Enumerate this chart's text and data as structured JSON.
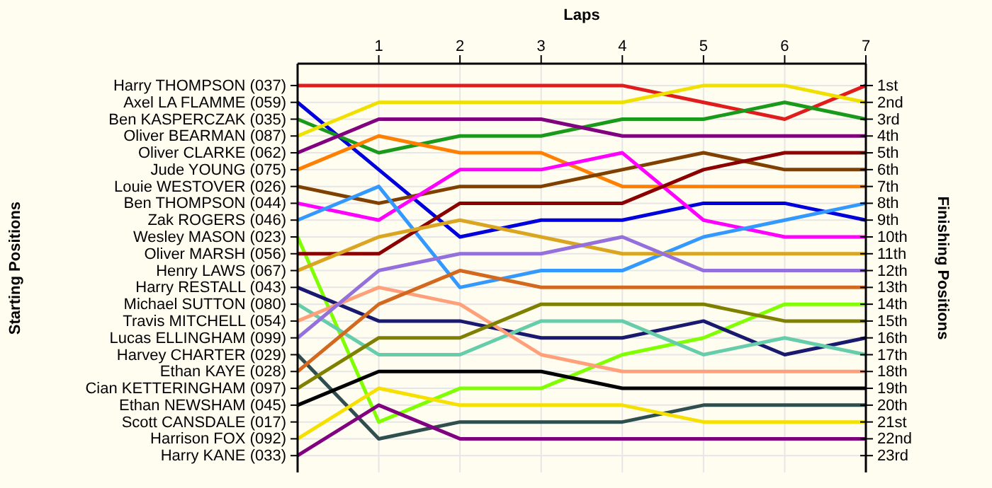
{
  "chart_data": {
    "type": "line",
    "xlabel": "Laps",
    "y2label": "Finishing Positions",
    "x": [
      0,
      1,
      2,
      3,
      4,
      5,
      6,
      7
    ],
    "xlim": [
      0,
      7
    ],
    "xticks": [
      1,
      2,
      3,
      4,
      5,
      6,
      7
    ],
    "y2lim": [
      24,
      -0.3
    ],
    "y2ticks": [
      {
        "value": 1,
        "label": "1st"
      },
      {
        "value": 2,
        "label": "2nd"
      },
      {
        "value": 3,
        "label": "3rd"
      },
      {
        "value": 4,
        "label": "4th"
      },
      {
        "value": 5,
        "label": "5th"
      },
      {
        "value": 6,
        "label": "6th"
      },
      {
        "value": 7,
        "label": "7th"
      },
      {
        "value": 8,
        "label": "8th"
      },
      {
        "value": 9,
        "label": "9th"
      },
      {
        "value": 10,
        "label": "10th"
      },
      {
        "value": 11,
        "label": "11th"
      },
      {
        "value": 12,
        "label": "12th"
      },
      {
        "value": 13,
        "label": "13th"
      },
      {
        "value": 14,
        "label": "14th"
      },
      {
        "value": 15,
        "label": "15th"
      },
      {
        "value": 16,
        "label": "16th"
      },
      {
        "value": 17,
        "label": "17th"
      },
      {
        "value": 18,
        "label": "18th"
      },
      {
        "value": 19,
        "label": "19th"
      },
      {
        "value": 20,
        "label": "20th"
      },
      {
        "value": 21,
        "label": "21st"
      },
      {
        "value": 22,
        "label": "22nd"
      },
      {
        "value": 23,
        "label": "23rd"
      }
    ],
    "grid": true,
    "marker": "none",
    "line_style": "solid",
    "annotations": [
      "Harry THOMPSON (037)",
      "Axel LA FLAMME (059)",
      "Ben KASPERCZAK (035)",
      "Oliver BEARMAN (087)",
      "Oliver CLARKE (062)",
      "Jude YOUNG (075)",
      "Louie WESTOVER (026)",
      "Ben THOMPSON (044)",
      "Zak ROGERS (046)",
      "Wesley MASON (023)",
      "Oliver MARSH (056)",
      "Henry LAWS (067)",
      "Harry RESTALL (043)",
      "Michael SUTTON (080)",
      "Travis MITCHELL (054)",
      "Lucas ELLINGHAM (099)",
      "Harvey CHARTER (029)",
      "Ethan KAYE (028)",
      "Cian KETTERINGHAM (097)",
      "Ethan NEWSHAM (045)",
      "Scott CANSDALE (017)",
      "Harrison FOX (092)",
      "Harry KANE (033)",
      "Starting Positions"
    ],
    "series": [
      {
        "color": "#e01c1c",
        "values": [
          1,
          1,
          1,
          1,
          1,
          2,
          3,
          1
        ],
        "axis": "y2"
      },
      {
        "color": "#0000dd",
        "values": [
          2,
          6,
          10,
          9,
          9,
          8,
          8,
          9
        ],
        "axis": "y2"
      },
      {
        "color": "#1a9a1a",
        "values": [
          3,
          5,
          4,
          4,
          3,
          3,
          2,
          3
        ],
        "axis": "y2"
      },
      {
        "color": "#f0e000",
        "values": [
          4,
          2,
          2,
          2,
          2,
          1,
          1,
          2
        ],
        "axis": "y2"
      },
      {
        "color": "#800080",
        "values": [
          5,
          3,
          3,
          3,
          4,
          4,
          4,
          4
        ],
        "axis": "y2"
      },
      {
        "color": "#ff8000",
        "values": [
          6,
          4,
          5,
          5,
          7,
          7,
          7,
          7
        ],
        "axis": "y2"
      },
      {
        "color": "#804000",
        "values": [
          7,
          8,
          7,
          7,
          6,
          5,
          6,
          6
        ],
        "axis": "y2"
      },
      {
        "color": "#ff00ff",
        "values": [
          8,
          9,
          6,
          6,
          5,
          9,
          10,
          10
        ],
        "axis": "y2"
      },
      {
        "color": "#3399ff",
        "values": [
          9,
          7,
          13,
          12,
          12,
          10,
          9,
          8
        ],
        "axis": "y2"
      },
      {
        "color": "#80ff00",
        "values": [
          10,
          21,
          19,
          19,
          17,
          16,
          14,
          14
        ],
        "axis": "y2"
      },
      {
        "color": "#8b0000",
        "values": [
          11,
          11,
          8,
          8,
          8,
          6,
          5,
          5
        ],
        "axis": "y2"
      },
      {
        "color": "#daa520",
        "values": [
          12,
          10,
          9,
          10,
          11,
          11,
          11,
          11
        ],
        "axis": "y2"
      },
      {
        "color": "#191970",
        "values": [
          13,
          15,
          15,
          16,
          16,
          15,
          17,
          16
        ],
        "axis": "y2"
      },
      {
        "color": "#66cdaa",
        "values": [
          14,
          17,
          17,
          15,
          15,
          17,
          16,
          17
        ],
        "axis": "y2"
      },
      {
        "color": "#ffa07a",
        "values": [
          15,
          13,
          14,
          17,
          18,
          18,
          18,
          18
        ],
        "axis": "y2"
      },
      {
        "color": "#9370db",
        "values": [
          16,
          12,
          11,
          11,
          10,
          12,
          12,
          12
        ],
        "axis": "y2"
      },
      {
        "color": "#2f4f4f",
        "values": [
          17,
          22,
          21,
          21,
          21,
          20,
          20,
          20
        ],
        "axis": "y2"
      },
      {
        "color": "#d2691e",
        "values": [
          18,
          14,
          12,
          13,
          13,
          13,
          13,
          13
        ],
        "axis": "y2"
      },
      {
        "color": "#808000",
        "values": [
          19,
          16,
          16,
          14,
          14,
          14,
          15,
          15
        ],
        "axis": "y2"
      },
      {
        "color": "#000000",
        "values": [
          20,
          18,
          18,
          18,
          19,
          19,
          19,
          19
        ],
        "axis": "y2"
      },
      {
        "color": "#f5e000",
        "values": [
          22,
          19,
          20,
          20,
          20,
          21,
          21,
          21
        ],
        "axis": "y2"
      },
      {
        "color": "#800080",
        "values": [
          23,
          20,
          22,
          22,
          22,
          22,
          22,
          22
        ],
        "axis": "y2"
      }
    ]
  }
}
